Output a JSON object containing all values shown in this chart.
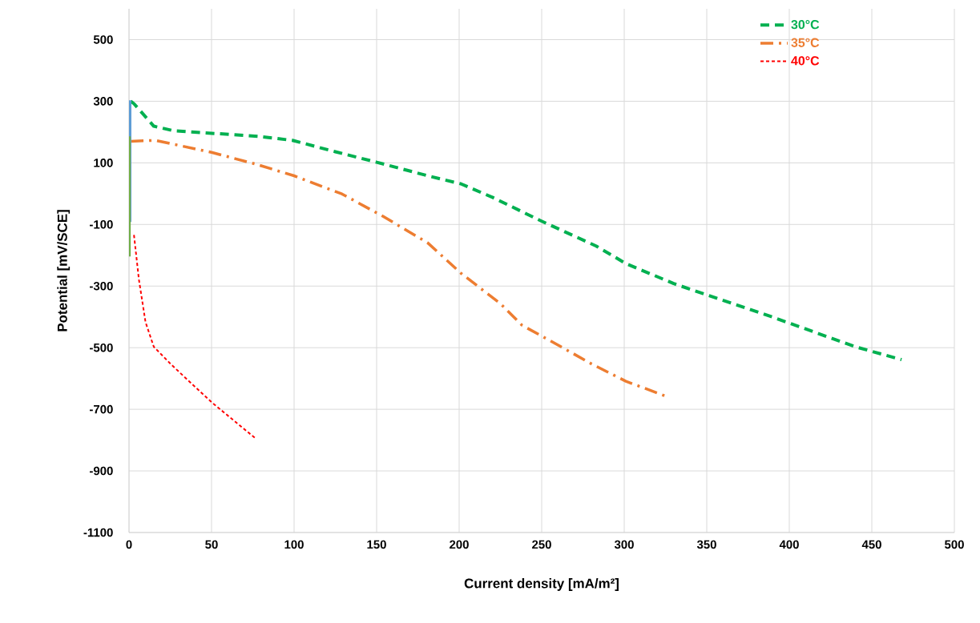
{
  "chart_data": {
    "type": "line",
    "xlabel": "Current density [mA/m²]",
    "ylabel": "Potential [mV/SCE]",
    "xlim": [
      0,
      500
    ],
    "ylim": [
      -1100,
      600
    ],
    "xticks": [
      0,
      50,
      100,
      150,
      200,
      250,
      300,
      350,
      400,
      450,
      500
    ],
    "yticks": [
      -1100,
      -900,
      -700,
      -500,
      -300,
      -100,
      100,
      300,
      500
    ],
    "grid": true,
    "legend": "top right",
    "series": [
      {
        "name": "30°C",
        "color": "#00b050",
        "line_style": "dashed",
        "x": [
          1,
          3,
          15,
          27,
          50,
          78,
          99,
          125,
          150,
          181,
          201,
          221,
          249,
          283,
          301,
          330,
          390,
          440,
          468
        ],
        "values": [
          300,
          292,
          219,
          204,
          196,
          186,
          173,
          136,
          102,
          58,
          32,
          -14,
          -87,
          -170,
          -227,
          -292,
          -401,
          -497,
          -539
        ]
      },
      {
        "name": "35°C",
        "color": "#ed7d31",
        "line_style": "dashdot",
        "x": [
          1,
          16,
          50,
          76,
          100,
          129,
          154,
          181,
          201,
          225,
          238,
          255,
          280,
          301,
          327
        ],
        "values": [
          170,
          173,
          134,
          97,
          58,
          -1,
          -74,
          -160,
          -258,
          -357,
          -427,
          -477,
          -552,
          -609,
          -661
        ]
      },
      {
        "name": "40°C",
        "color": "#ff0000",
        "line_style": "dotted",
        "x": [
          3,
          6,
          10,
          15,
          26,
          50,
          77
        ],
        "values": [
          -134,
          -279,
          -417,
          -497,
          -557,
          -677,
          -796
        ]
      },
      {
        "color": "#5b9bd5",
        "line_style": "solid",
        "x": [
          0.7,
          0.7
        ],
        "values": [
          303,
          -92
        ]
      },
      {
        "color": "#70ad47",
        "line_style": "solid",
        "x": [
          0.3,
          0.3
        ],
        "values": [
          186,
          -204
        ]
      }
    ]
  }
}
